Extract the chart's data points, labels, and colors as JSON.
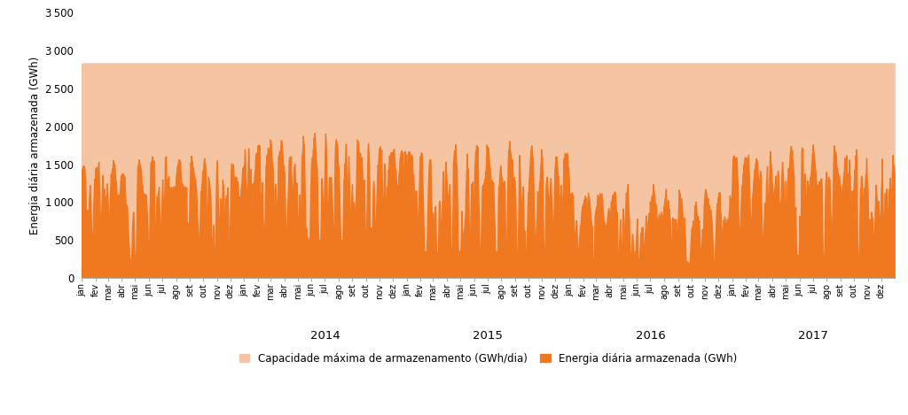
{
  "max_capacity": 2830,
  "ylim": [
    0,
    3500
  ],
  "yticks": [
    0,
    500,
    1000,
    1500,
    2000,
    2500,
    3000,
    3500
  ],
  "ylabel": "Energia diária armazenada (GWh)",
  "color_capacity": "#F5C5A3",
  "color_energy": "#F07820",
  "legend_labels": [
    "Capacidade máxima de armazenamento (GWh/dia)",
    "Energia diária armazenada (GWh)"
  ],
  "months_pt": [
    "jan",
    "fev",
    "mar",
    "abr",
    "mai",
    "jun",
    "jul",
    "ago",
    "set",
    "out",
    "nov",
    "dez"
  ],
  "background_color": "#ffffff",
  "figsize": [
    10.24,
    4.69
  ],
  "dpi": 100
}
